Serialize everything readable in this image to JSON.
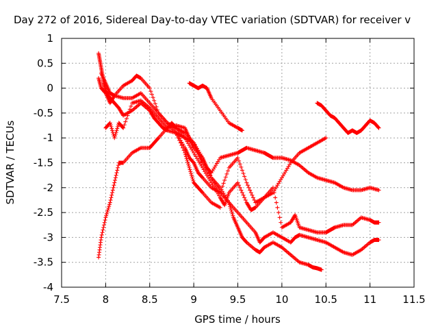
{
  "chart_data": {
    "type": "scatter",
    "title": "Day 272 of 2016, Sidereal Day-to-day VTEC variation (SDTVAR) for receiver v",
    "xlabel": "GPS time / hours",
    "ylabel": "SDTVAR / TECUs",
    "xlim": [
      7.5,
      11.5
    ],
    "ylim": [
      -4,
      1
    ],
    "xticks": [
      "7.5",
      "8",
      "8.5",
      "9",
      "9.5",
      "10",
      "10.5",
      "11",
      "11.5"
    ],
    "yticks": [
      "1",
      "0.5",
      "0",
      "-0.5",
      "-1",
      "-1.5",
      "-2",
      "-2.5",
      "-3",
      "-3.5",
      "-4"
    ],
    "grid": true,
    "marker": "+",
    "color": "#ff0000",
    "series": [
      {
        "x": [
          7.92,
          7.94,
          7.96,
          7.98,
          8.0,
          8.05,
          8.1,
          8.15,
          8.2,
          8.3,
          8.4,
          8.5,
          8.55,
          8.6,
          8.65,
          8.7,
          8.8,
          8.9,
          8.95,
          9.0,
          9.05,
          9.1,
          9.2,
          9.3
        ],
        "y": [
          0.7,
          0.5,
          0.3,
          0.1,
          -0.05,
          -0.2,
          -0.3,
          -0.4,
          -0.55,
          -0.45,
          -0.3,
          -0.45,
          -0.6,
          -0.7,
          -0.8,
          -0.85,
          -0.9,
          -1.3,
          -1.6,
          -1.9,
          -2.0,
          -2.1,
          -2.3,
          -2.4
        ]
      },
      {
        "x": [
          7.92,
          7.95,
          8.0,
          8.05,
          8.1,
          8.2,
          8.3,
          8.4,
          8.5,
          8.6,
          8.7,
          8.8,
          8.9,
          9.0,
          9.1,
          9.2,
          9.3,
          9.4,
          9.5,
          9.6,
          9.7,
          9.75,
          9.8,
          9.9,
          10.0,
          10.1,
          10.15,
          10.2,
          10.3,
          10.4,
          10.5,
          10.6,
          10.7,
          10.8,
          10.9,
          11.0,
          11.05,
          11.1
        ],
        "y": [
          0.2,
          0.0,
          -0.1,
          -0.3,
          -0.15,
          -0.2,
          -0.2,
          -0.1,
          -0.3,
          -0.5,
          -0.7,
          -0.9,
          -1.0,
          -1.1,
          -1.4,
          -1.8,
          -2.1,
          -2.3,
          -2.5,
          -2.7,
          -2.9,
          -3.1,
          -3.0,
          -2.9,
          -3.0,
          -3.1,
          -3.0,
          -2.95,
          -3.0,
          -3.05,
          -3.1,
          -3.2,
          -3.3,
          -3.35,
          -3.25,
          -3.1,
          -3.05,
          -3.05
        ]
      },
      {
        "x": [
          7.95,
          8.0,
          8.05,
          8.1,
          8.2,
          8.3,
          8.35,
          8.4,
          8.5,
          8.6,
          8.7,
          8.8,
          8.9,
          9.0,
          9.05,
          9.1,
          9.2,
          9.3,
          9.4,
          9.45,
          9.5,
          9.55,
          9.6,
          9.7,
          9.75,
          9.8,
          9.9,
          10.0,
          10.1,
          10.2,
          10.3,
          10.35,
          10.4,
          10.45
        ],
        "y": [
          0.3,
          0.1,
          -0.1,
          -0.15,
          0.05,
          0.15,
          0.25,
          0.2,
          0.0,
          -0.5,
          -0.7,
          -0.8,
          -0.9,
          -1.1,
          -1.3,
          -1.5,
          -1.8,
          -2.0,
          -2.3,
          -2.6,
          -2.8,
          -3.0,
          -3.1,
          -3.25,
          -3.3,
          -3.2,
          -3.1,
          -3.2,
          -3.35,
          -3.5,
          -3.55,
          -3.6,
          -3.62,
          -3.65
        ]
      },
      {
        "x": [
          7.92,
          7.95,
          8.0,
          8.05,
          8.1,
          8.15,
          8.2,
          8.3,
          8.4,
          8.5,
          8.55,
          8.6,
          8.7,
          8.75,
          8.8,
          8.9,
          9.0,
          9.1,
          9.2,
          9.3,
          9.35,
          9.4,
          9.5,
          9.6,
          9.65,
          9.7,
          9.8,
          9.9,
          10.0,
          10.1,
          10.15,
          10.2,
          10.3,
          10.4,
          10.5,
          10.55,
          10.6,
          10.7,
          10.8,
          10.9,
          11.0,
          11.05,
          11.1
        ],
        "y": [
          -3.4,
          -3.0,
          -2.6,
          -2.3,
          -1.9,
          -1.5,
          -1.5,
          -1.3,
          -1.2,
          -1.2,
          -1.1,
          -1.0,
          -0.8,
          -0.7,
          -0.8,
          -1.0,
          -1.3,
          -1.6,
          -1.9,
          -2.2,
          -2.35,
          -2.1,
          -1.9,
          -2.3,
          -2.45,
          -2.4,
          -2.2,
          -2.0,
          -2.8,
          -2.7,
          -2.55,
          -2.8,
          -2.85,
          -2.9,
          -2.9,
          -2.85,
          -2.8,
          -2.75,
          -2.75,
          -2.6,
          -2.65,
          -2.7,
          -2.7
        ]
      },
      {
        "x": [
          8.0,
          8.05,
          8.1,
          8.15,
          8.2,
          8.3,
          8.4,
          8.5,
          8.6,
          8.7,
          8.8,
          8.9,
          8.95,
          9.0,
          9.1,
          9.15,
          9.2,
          9.3,
          9.4,
          9.5,
          9.55,
          9.6,
          9.7,
          9.8,
          9.85,
          9.9,
          10.0,
          10.1,
          10.2,
          10.3,
          10.4,
          10.5,
          10.6,
          10.7,
          10.8,
          10.9,
          11.0,
          11.1
        ],
        "y": [
          -0.8,
          -0.7,
          -1.0,
          -0.7,
          -0.8,
          -0.3,
          -0.25,
          -0.4,
          -0.6,
          -0.8,
          -0.75,
          -0.8,
          -1.0,
          -1.2,
          -1.4,
          -1.6,
          -1.7,
          -1.4,
          -1.35,
          -1.3,
          -1.25,
          -1.2,
          -1.25,
          -1.3,
          -1.35,
          -1.4,
          -1.4,
          -1.45,
          -1.55,
          -1.7,
          -1.8,
          -1.85,
          -1.9,
          -2.0,
          -2.05,
          -2.05,
          -2.0,
          -2.05
        ]
      },
      {
        "x": [
          8.8,
          8.9,
          8.95,
          9.0,
          9.05,
          9.1,
          9.2,
          9.3,
          9.4,
          9.5,
          9.6,
          9.7,
          9.8,
          9.9,
          10.0,
          10.1,
          10.2,
          10.3,
          10.4,
          10.5
        ],
        "y": [
          -0.9,
          -1.2,
          -1.4,
          -1.5,
          -1.7,
          -1.8,
          -2.0,
          -2.1,
          -1.6,
          -1.4,
          -1.9,
          -2.3,
          -2.2,
          -2.1,
          -1.8,
          -1.5,
          -1.3,
          -1.2,
          -1.1,
          -1.0
        ]
      },
      {
        "x": [
          8.95,
          9.0,
          9.05,
          9.1,
          9.15,
          9.2,
          9.3,
          9.4,
          9.5,
          9.55
        ],
        "y": [
          0.1,
          0.05,
          0.0,
          0.05,
          0.0,
          -0.2,
          -0.45,
          -0.7,
          -0.8,
          -0.85
        ]
      },
      {
        "x": [
          10.4,
          10.45,
          10.5,
          10.55,
          10.6,
          10.65,
          10.7,
          10.75,
          10.8,
          10.85,
          10.9,
          10.95,
          11.0,
          11.05,
          11.1
        ],
        "y": [
          -0.3,
          -0.35,
          -0.45,
          -0.55,
          -0.6,
          -0.7,
          -0.8,
          -0.9,
          -0.85,
          -0.9,
          -0.85,
          -0.75,
          -0.65,
          -0.7,
          -0.8
        ]
      }
    ]
  }
}
